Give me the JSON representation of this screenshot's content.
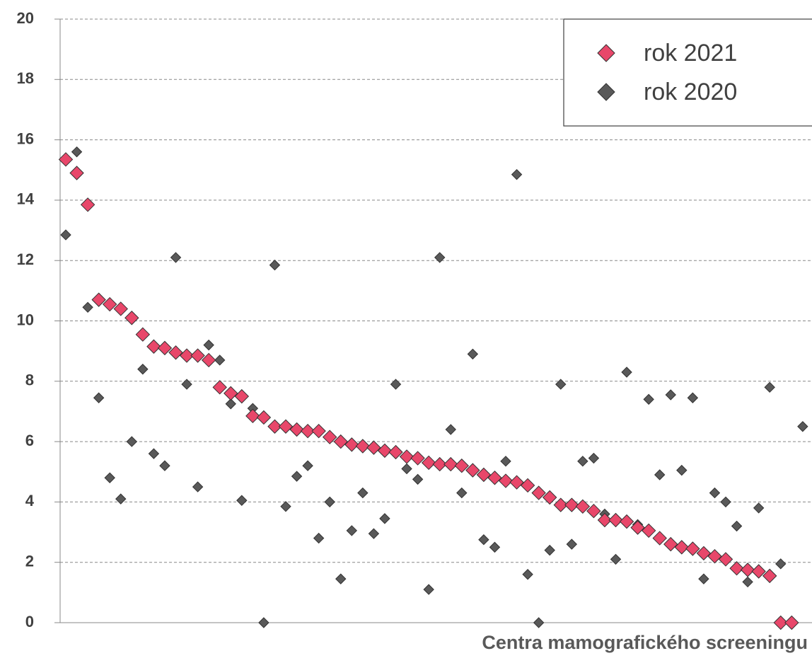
{
  "chart_data": {
    "type": "scatter",
    "x_label": "Centra mamografického screeningu",
    "ylim": [
      0,
      20
    ],
    "yticks": [
      0,
      2,
      4,
      6,
      8,
      10,
      12,
      14,
      16,
      18,
      20
    ],
    "grid": true,
    "legend": "upper right",
    "series": [
      {
        "name": "rok 2021",
        "color": "#e8476a",
        "values": [
          15.35,
          14.9,
          13.85,
          10.7,
          10.55,
          10.4,
          10.1,
          9.55,
          9.15,
          9.1,
          8.95,
          8.85,
          8.85,
          8.7,
          7.8,
          7.6,
          7.5,
          6.85,
          6.8,
          6.5,
          6.5,
          6.4,
          6.35,
          6.35,
          6.15,
          6.0,
          5.9,
          5.85,
          5.8,
          5.7,
          5.65,
          5.5,
          5.45,
          5.3,
          5.25,
          5.25,
          5.2,
          5.05,
          4.9,
          4.8,
          4.7,
          4.65,
          4.55,
          4.3,
          4.15,
          3.9,
          3.9,
          3.85,
          3.7,
          3.4,
          3.4,
          3.35,
          3.15,
          3.05,
          2.8,
          2.6,
          2.5,
          2.45,
          2.3,
          2.2,
          2.1,
          1.8,
          1.75,
          1.7,
          1.55,
          0,
          0,
          null
        ]
      },
      {
        "name": "rok 2020",
        "color": "#595959",
        "values": [
          12.85,
          15.6,
          10.45,
          7.45,
          4.8,
          4.1,
          6.0,
          8.4,
          5.6,
          5.2,
          12.1,
          7.9,
          4.5,
          9.2,
          8.7,
          7.25,
          4.05,
          7.1,
          0,
          11.85,
          3.85,
          4.85,
          5.2,
          2.8,
          4.0,
          1.45,
          3.05,
          4.3,
          2.95,
          3.45,
          7.9,
          5.1,
          4.75,
          1.1,
          12.1,
          6.4,
          4.3,
          8.9,
          2.75,
          2.5,
          5.35,
          14.85,
          1.6,
          0,
          2.4,
          7.9,
          2.6,
          5.35,
          5.45,
          3.6,
          2.1,
          8.3,
          3.25,
          7.4,
          4.9,
          7.55,
          5.05,
          7.45,
          1.45,
          4.3,
          4.0,
          3.2,
          1.35,
          3.8,
          7.8,
          1.95,
          null,
          6.5
        ]
      }
    ]
  }
}
